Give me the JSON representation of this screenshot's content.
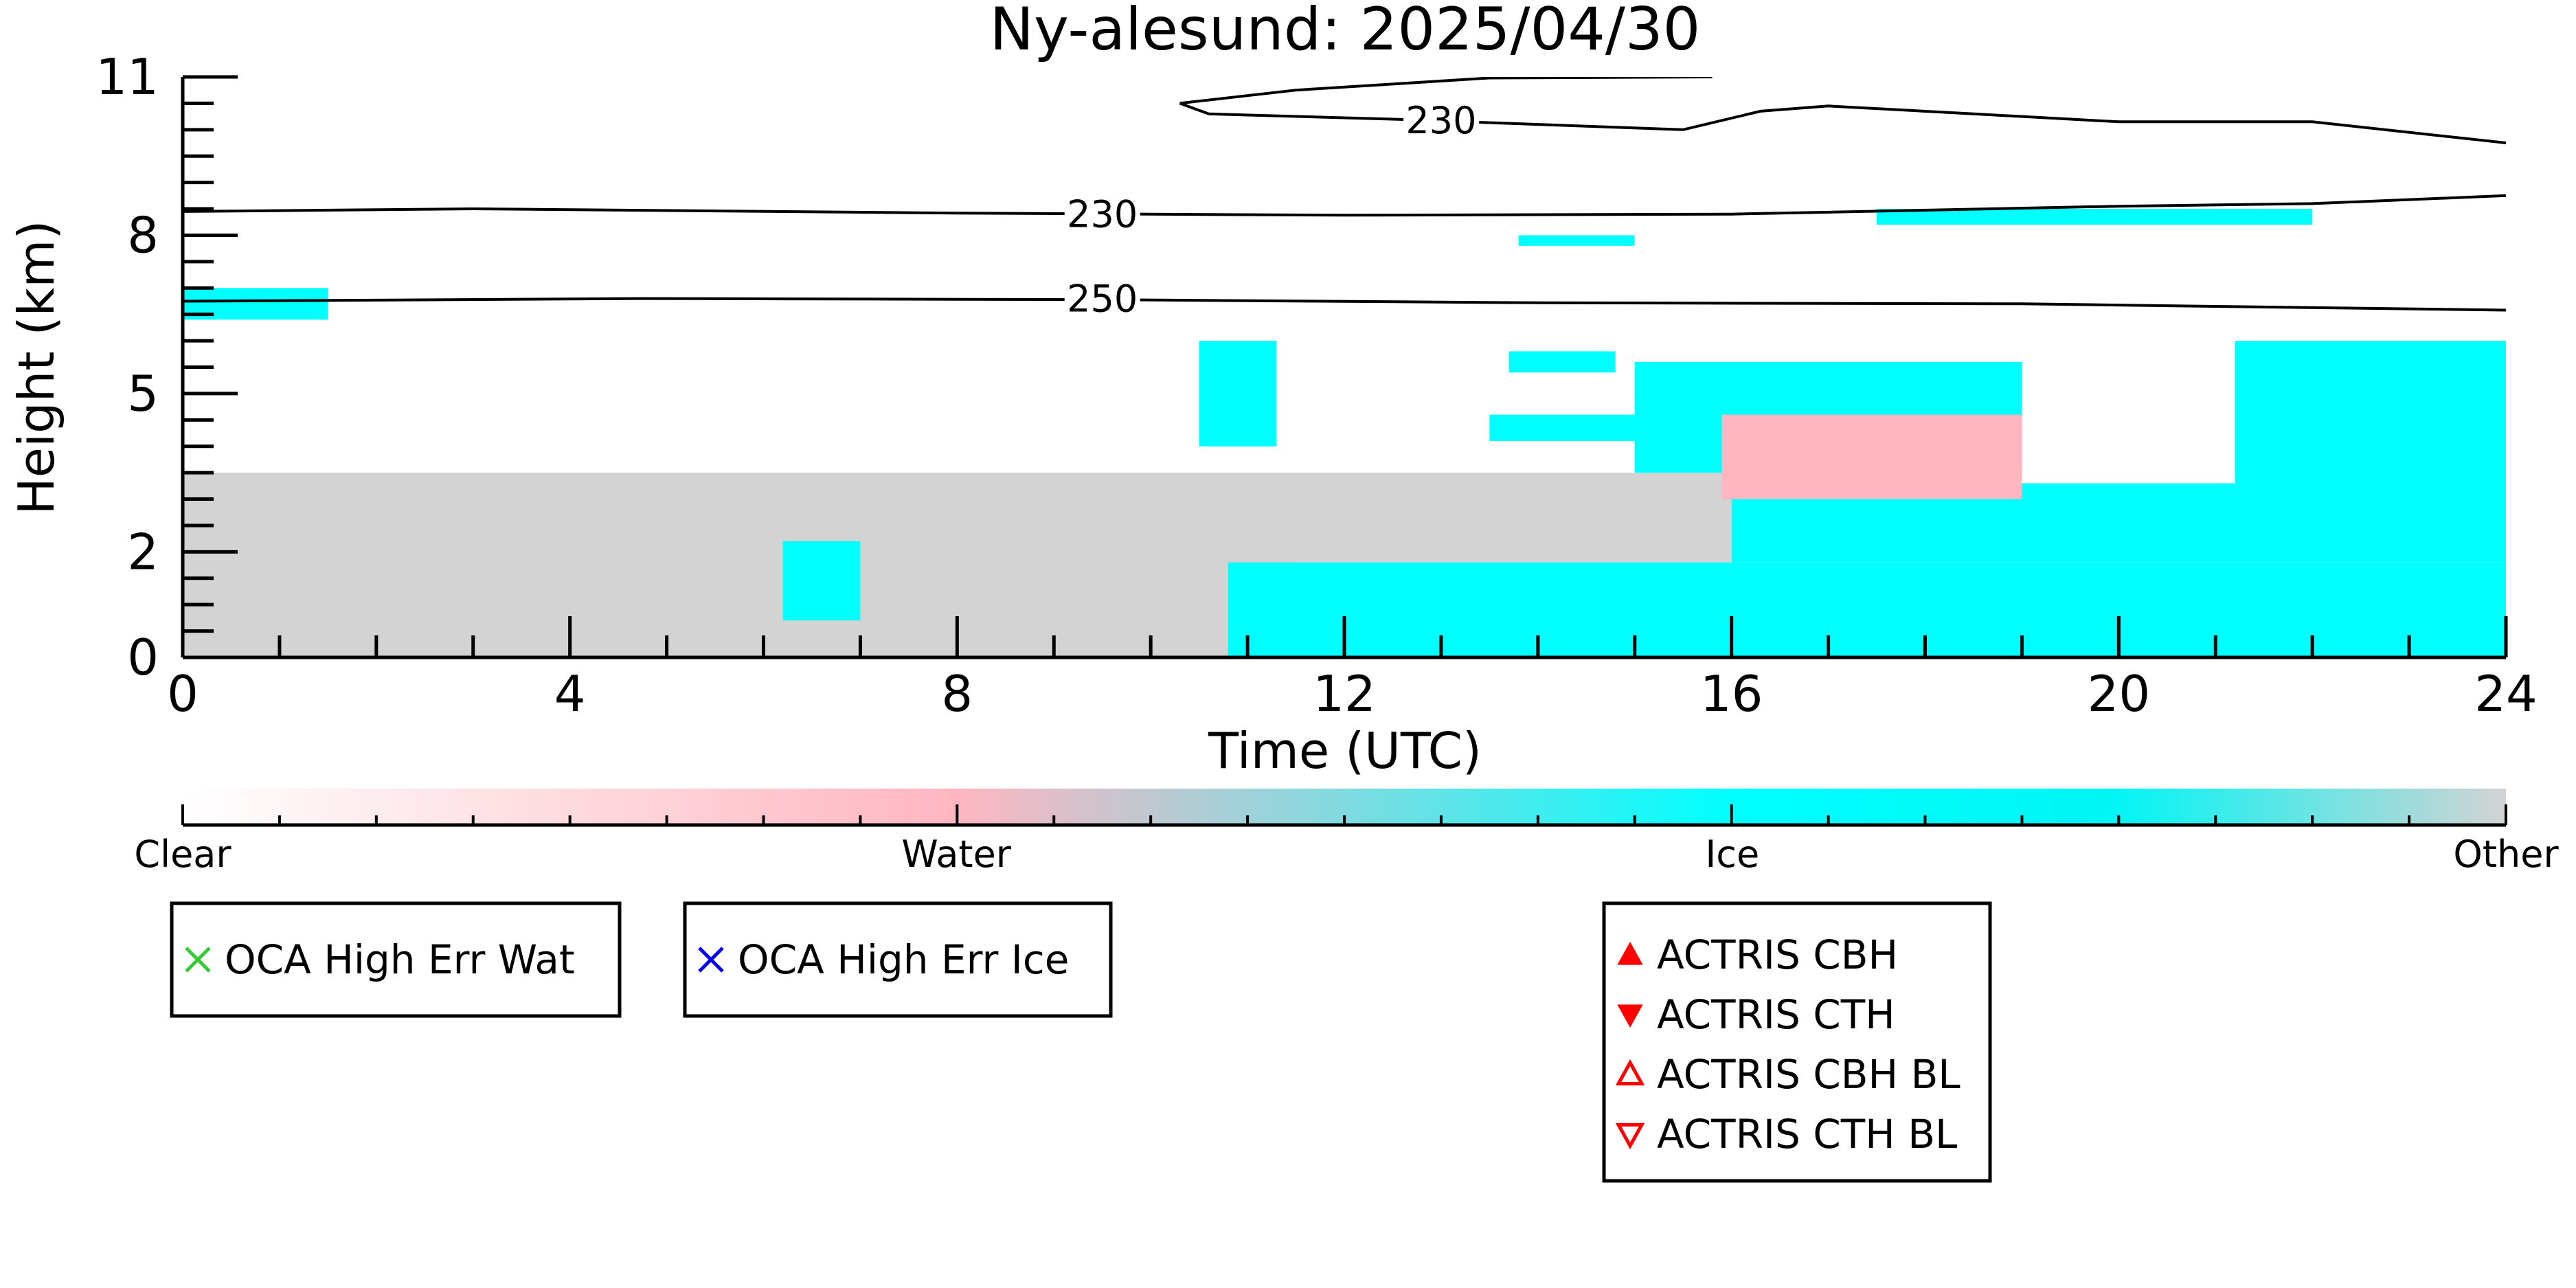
{
  "chart_data": {
    "type": "heatmap",
    "title": "Ny-alesund: 2025/04/30",
    "xlabel": "Time (UTC)",
    "ylabel": "Height (km)",
    "xlim": [
      0,
      24
    ],
    "ylim": [
      0,
      11
    ],
    "x_ticks": [
      0,
      4,
      8,
      12,
      16,
      20,
      24
    ],
    "x_tick_labels": [
      "0",
      "4",
      "8",
      "12",
      "16",
      "20",
      "24"
    ],
    "y_ticks": [
      0,
      2,
      5,
      8,
      11
    ],
    "y_tick_labels": [
      "0",
      "2",
      "5",
      "8",
      "11"
    ],
    "categories": [
      "Clear",
      "Water",
      "Ice",
      "Other"
    ],
    "colors": {
      "Clear": "#ffffff",
      "Water": "#ffb6c1",
      "Ice": "#00ffff",
      "Other": "#d3d3d3"
    },
    "regions": [
      {
        "category": "Other",
        "t": [
          0,
          11.5
        ],
        "h": [
          0,
          3.5
        ]
      },
      {
        "category": "Other",
        "t": [
          11.5,
          16
        ],
        "h": [
          1.8,
          3.5
        ]
      },
      {
        "category": "Ice",
        "t": [
          0,
          1.5
        ],
        "h": [
          6.4,
          7.0
        ]
      },
      {
        "category": "Ice",
        "t": [
          6.2,
          7.0
        ],
        "h": [
          0.7,
          2.2
        ]
      },
      {
        "category": "Ice",
        "t": [
          10.8,
          24
        ],
        "h": [
          0,
          1.8
        ]
      },
      {
        "category": "Ice",
        "t": [
          16,
          24
        ],
        "h": [
          1.8,
          3.3
        ]
      },
      {
        "category": "Ice",
        "t": [
          21.2,
          24
        ],
        "h": [
          3.3,
          6.0
        ]
      },
      {
        "category": "Ice",
        "t": [
          15,
          19
        ],
        "h": [
          3.5,
          5.6
        ]
      },
      {
        "category": "Water",
        "t": [
          15.9,
          19
        ],
        "h": [
          3.0,
          4.6
        ]
      },
      {
        "category": "Ice",
        "t": [
          10.5,
          11.3
        ],
        "h": [
          4.0,
          6.0
        ]
      },
      {
        "category": "Ice",
        "t": [
          13.7,
          14.8
        ],
        "h": [
          5.4,
          5.8
        ]
      },
      {
        "category": "Ice",
        "t": [
          13.5,
          15.5
        ],
        "h": [
          4.1,
          4.6
        ]
      },
      {
        "category": "Ice",
        "t": [
          13.8,
          15.0
        ],
        "h": [
          7.8,
          8.0
        ]
      },
      {
        "category": "Ice",
        "t": [
          17.5,
          22.0
        ],
        "h": [
          8.2,
          8.5
        ]
      }
    ],
    "contours": [
      {
        "label": "250",
        "points": [
          [
            0,
            6.75
          ],
          [
            4.7,
            6.8
          ],
          [
            9.5,
            6.78
          ],
          [
            14,
            6.72
          ],
          [
            19,
            6.7
          ],
          [
            24,
            6.58
          ]
        ]
      },
      {
        "label": "230",
        "points": [
          [
            0,
            8.45
          ],
          [
            3,
            8.5
          ],
          [
            8,
            8.42
          ],
          [
            12,
            8.38
          ],
          [
            16,
            8.4
          ],
          [
            20,
            8.55
          ],
          [
            22,
            8.6
          ],
          [
            24,
            8.75
          ]
        ]
      },
      {
        "label": "230",
        "points": [
          [
            10.3,
            10.5
          ],
          [
            10.6,
            10.3
          ],
          [
            12.5,
            10.2
          ],
          [
            14,
            10.1
          ],
          [
            15.5,
            10.0
          ],
          [
            16.3,
            10.35
          ],
          [
            17,
            10.45
          ],
          [
            18.5,
            10.3
          ],
          [
            20,
            10.15
          ],
          [
            22,
            10.15
          ],
          [
            24,
            9.75
          ]
        ]
      },
      {
        "label": "",
        "points": [
          [
            10.3,
            10.5
          ],
          [
            11.5,
            10.75
          ],
          [
            13.5,
            10.98
          ],
          [
            15.8,
            11.0
          ]
        ]
      }
    ],
    "contour_labels": [
      {
        "text": "250",
        "x": 9.5,
        "y": 6.8
      },
      {
        "text": "230",
        "x": 9.5,
        "y": 8.4
      },
      {
        "text": "230",
        "x": 13.0,
        "y": 10.18
      }
    ],
    "colorbar": {
      "labels": [
        "Clear",
        "Water",
        "Ice",
        "Other"
      ],
      "positions": [
        0,
        0.333,
        0.667,
        1.0
      ]
    },
    "legend_boxes": [
      {
        "entries": [
          {
            "symbol": "x",
            "color": "#33cc33",
            "label": "OCA High Err Wat"
          }
        ]
      },
      {
        "entries": [
          {
            "symbol": "x",
            "color": "#0000ee",
            "label": "OCA High Err Ice"
          }
        ]
      },
      {
        "entries": [
          {
            "symbol": "tri-up-filled",
            "color": "#ff0000",
            "label": "ACTRIS CBH"
          },
          {
            "symbol": "tri-down-filled",
            "color": "#ff0000",
            "label": "ACTRIS CTH"
          },
          {
            "symbol": "tri-up-open",
            "color": "#ff0000",
            "label": "ACTRIS CBH BL"
          },
          {
            "symbol": "tri-down-open",
            "color": "#ff0000",
            "label": "ACTRIS CTH BL"
          }
        ]
      }
    ]
  }
}
